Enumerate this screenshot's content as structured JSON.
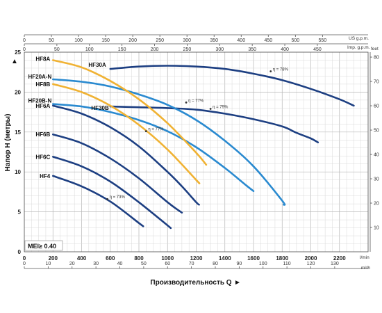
{
  "chart_data": {
    "type": "line",
    "xlabel": "Производительность Q",
    "ylabel": "Напор H (метры)",
    "x_unit": "l/min",
    "xlim": [
      0,
      2400
    ],
    "ylim": [
      0,
      25
    ],
    "x_ticks": [
      0,
      200,
      400,
      600,
      800,
      1000,
      1200,
      1400,
      1600,
      1800,
      2000,
      2200
    ],
    "y_ticks": [
      0,
      5,
      10,
      15,
      20,
      25
    ],
    "top_axes": [
      {
        "unit": "US g.p.m.",
        "ticks": [
          0,
          50,
          100,
          150,
          200,
          250,
          300,
          350,
          400,
          450,
          500,
          550
        ]
      },
      {
        "unit": "Imp. g.p.m.",
        "ticks": [
          0,
          50,
          100,
          150,
          200,
          250,
          300,
          350,
          400,
          450
        ]
      }
    ],
    "bottom_axis_2": {
      "unit": "m³/h",
      "ticks": [
        0,
        10,
        20,
        30,
        40,
        50,
        60,
        70,
        80,
        90,
        100,
        110,
        120,
        130
      ]
    },
    "right_axis": {
      "unit": "feet",
      "ticks": [
        10,
        20,
        30,
        40,
        50,
        60,
        70,
        80
      ]
    },
    "mei_label": "MEI≥ 0.40",
    "series": [
      {
        "name": "HF30A",
        "color": "#1d3f82",
        "points": [
          [
            600,
            22.9
          ],
          [
            800,
            23.2
          ],
          [
            1000,
            23.3
          ],
          [
            1200,
            23.2
          ],
          [
            1400,
            22.9
          ],
          [
            1600,
            22.3
          ],
          [
            1800,
            21.5
          ],
          [
            2000,
            20.4
          ],
          [
            2200,
            19.1
          ],
          [
            2300,
            18.3
          ]
        ]
      },
      {
        "name": "HF30B",
        "color": "#1d3f82",
        "points": [
          [
            600,
            18.2
          ],
          [
            800,
            18.1
          ],
          [
            1000,
            18.0
          ],
          [
            1200,
            17.8
          ],
          [
            1400,
            17.3
          ],
          [
            1600,
            16.6
          ],
          [
            1800,
            15.7
          ],
          [
            1900,
            14.9
          ],
          [
            2000,
            14.2
          ],
          [
            2050,
            13.7
          ]
        ]
      },
      {
        "name": "HF20A-N",
        "color": "#2a8ad0",
        "points": [
          [
            200,
            21.6
          ],
          [
            400,
            21.3
          ],
          [
            600,
            20.7
          ],
          [
            800,
            19.7
          ],
          [
            1000,
            18.4
          ],
          [
            1200,
            16.5
          ],
          [
            1400,
            13.9
          ],
          [
            1600,
            10.7
          ],
          [
            1800,
            6.4
          ],
          [
            1810,
            5.9
          ]
        ]
      },
      {
        "name": "HF20B-N",
        "color": "#2a8ad0",
        "points": [
          [
            200,
            18.5
          ],
          [
            400,
            18.2
          ],
          [
            600,
            17.5
          ],
          [
            800,
            16.5
          ],
          [
            1000,
            15.1
          ],
          [
            1200,
            13.1
          ],
          [
            1400,
            10.5
          ],
          [
            1550,
            8.3
          ],
          [
            1600,
            7.6
          ]
        ]
      },
      {
        "name": "HF8A",
        "color": "#f0b233",
        "points": [
          [
            200,
            24.0
          ],
          [
            400,
            23.1
          ],
          [
            600,
            21.4
          ],
          [
            800,
            19.1
          ],
          [
            1000,
            16.1
          ],
          [
            1200,
            12.4
          ],
          [
            1270,
            10.9
          ]
        ]
      },
      {
        "name": "HF8B",
        "color": "#f0b233",
        "points": [
          [
            200,
            21.0
          ],
          [
            400,
            20.0
          ],
          [
            600,
            18.3
          ],
          [
            800,
            15.9
          ],
          [
            1000,
            12.8
          ],
          [
            1200,
            9.0
          ],
          [
            1220,
            8.6
          ]
        ]
      },
      {
        "name": "HF6A",
        "color": "#1d3f82",
        "points": [
          [
            200,
            18.3
          ],
          [
            400,
            17.3
          ],
          [
            600,
            15.6
          ],
          [
            800,
            13.2
          ],
          [
            1000,
            10.0
          ],
          [
            1100,
            8.2
          ],
          [
            1200,
            6.2
          ],
          [
            1220,
            5.9
          ]
        ]
      },
      {
        "name": "HF6B",
        "color": "#1d3f82",
        "points": [
          [
            200,
            14.7
          ],
          [
            400,
            13.6
          ],
          [
            600,
            11.7
          ],
          [
            800,
            9.2
          ],
          [
            1000,
            6.2
          ],
          [
            1100,
            4.9
          ]
        ]
      },
      {
        "name": "HF6C",
        "color": "#1d3f82",
        "points": [
          [
            200,
            11.9
          ],
          [
            400,
            10.7
          ],
          [
            600,
            8.8
          ],
          [
            800,
            6.2
          ],
          [
            1000,
            3.3
          ],
          [
            1020,
            3.0
          ]
        ]
      },
      {
        "name": "HF4",
        "color": "#1d3f82",
        "points": [
          [
            200,
            9.5
          ],
          [
            400,
            8.2
          ],
          [
            600,
            6.3
          ],
          [
            800,
            3.6
          ],
          [
            830,
            3.2
          ]
        ]
      }
    ],
    "annotations": [
      {
        "text": "η = 78%",
        "x": 1720,
        "y": 22.6
      },
      {
        "text": "η = 79%",
        "x": 1300,
        "y": 17.9
      },
      {
        "text": "η = 77%",
        "x": 1130,
        "y": 18.7
      },
      {
        "text": "η = 77%",
        "x": 850,
        "y": 15.1
      },
      {
        "text": "η = 73%",
        "x": 580,
        "y": 6.6
      }
    ]
  }
}
